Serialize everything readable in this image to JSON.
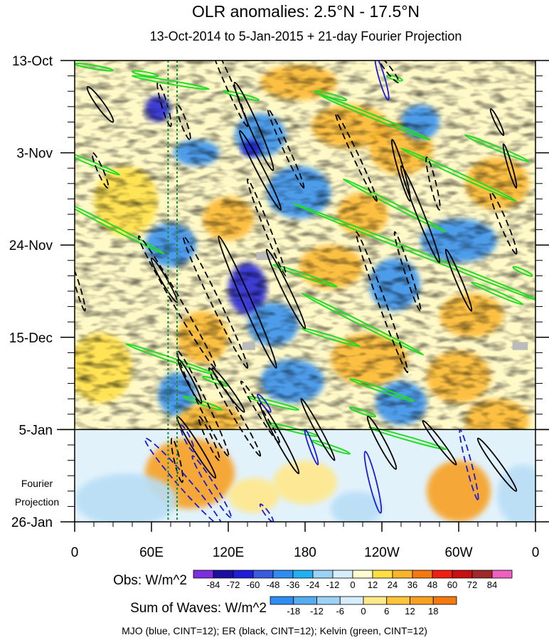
{
  "chart_data": {
    "type": "heatmap",
    "title": "OLR anomalies: 2.5°N - 17.5°N",
    "subtitle": "13-Oct-2014 to 5-Jan-2015 + 21-day Fourier Projection",
    "x_ticks": [
      {
        "lon": 0,
        "label": "0"
      },
      {
        "lon": 60,
        "label": "60E"
      },
      {
        "lon": 120,
        "label": "120E"
      },
      {
        "lon": 180,
        "label": "180"
      },
      {
        "lon": 240,
        "label": "120W"
      },
      {
        "lon": 300,
        "label": "60W"
      },
      {
        "lon": 360,
        "label": "0"
      }
    ],
    "y_ticks": [
      {
        "day": 0,
        "label": "13-Oct"
      },
      {
        "day": 21,
        "label": "3-Nov"
      },
      {
        "day": 42,
        "label": "24-Nov"
      },
      {
        "day": 63,
        "label": "15-Dec"
      },
      {
        "day": 84,
        "label": "5-Jan"
      },
      {
        "day": 105,
        "label": "26-Jan"
      }
    ],
    "forecast_label": [
      "Fourier",
      "Projection"
    ],
    "forecast_start_day": 84,
    "green_dotted_lons": [
      73,
      80
    ],
    "obs_colorbar": {
      "label": "Obs: W/m^2",
      "ticks": [
        "-84",
        "-72",
        "-60",
        "-48",
        "-36",
        "-24",
        "-12",
        "0",
        "12",
        "24",
        "36",
        "48",
        "60",
        "72",
        "84"
      ],
      "colors": [
        "#7d2ee0",
        "#1c0ea0",
        "#1e1ed8",
        "#3a5ae0",
        "#2f8cf0",
        "#21b0f2",
        "#9bd2f5",
        "#d6eefc",
        "#fffcd0",
        "#ffe040",
        "#fbb52a",
        "#f27a10",
        "#ee2012",
        "#c81010",
        "#a02828",
        "#f060c0"
      ]
    },
    "waves_colorbar": {
      "label": "Sum of Waves: W/m^2",
      "ticks": [
        "-18",
        "-12",
        "-6",
        "0",
        "6",
        "12",
        "18"
      ],
      "colors": [
        "#2f8cf0",
        "#56acf0",
        "#9bd2f5",
        "#d6eefc",
        "#ffe88a",
        "#ffc43a",
        "#f8a020",
        "#f27a10"
      ]
    },
    "footer": "MJO (blue, CINT=12); ER (black, CINT=12); Kelvin (green, CINT=12)",
    "colors": {
      "mjo": "#1a1ad8",
      "er": "#000000",
      "kelvin": "#22dd22",
      "dotted": "#1e8a3c",
      "missing": "#bbbbbb"
    },
    "er_contours": [
      {
        "lon": 20,
        "day": 10,
        "len_lon": 20,
        "len_day": 8,
        "w": 5,
        "dashed": false
      },
      {
        "lon": 20,
        "day": 25,
        "len_lon": 12,
        "len_day": 8,
        "w": 4,
        "dashed": true
      },
      {
        "lon": 70,
        "day": 10,
        "len_lon": 10,
        "len_day": 10,
        "w": 4,
        "dashed": true
      },
      {
        "lon": 85,
        "day": 14,
        "len_lon": 10,
        "len_day": 8,
        "w": 4,
        "dashed": true
      },
      {
        "lon": 120,
        "day": 5,
        "len_lon": 30,
        "len_day": 20,
        "w": 5,
        "dashed": true
      },
      {
        "lon": 140,
        "day": 15,
        "len_lon": 30,
        "len_day": 20,
        "w": 6,
        "dashed": false
      },
      {
        "lon": 145,
        "day": 25,
        "len_lon": 32,
        "len_day": 18,
        "w": 5,
        "dashed": false
      },
      {
        "lon": 165,
        "day": 20,
        "len_lon": 28,
        "len_day": 18,
        "w": 4,
        "dashed": true
      },
      {
        "lon": 150,
        "day": 38,
        "len_lon": 30,
        "len_day": 22,
        "w": 4,
        "dashed": true
      },
      {
        "lon": 220,
        "day": 22,
        "len_lon": 32,
        "len_day": 20,
        "w": 4,
        "dashed": true
      },
      {
        "lon": 245,
        "day": 2,
        "len_lon": 16,
        "len_day": 6,
        "w": 4,
        "dashed": true
      },
      {
        "lon": 270,
        "day": 35,
        "len_lon": 30,
        "len_day": 22,
        "w": 5,
        "dashed": false
      },
      {
        "lon": 255,
        "day": 25,
        "len_lon": 14,
        "len_day": 14,
        "w": 4,
        "dashed": false
      },
      {
        "lon": 280,
        "day": 28,
        "len_lon": 10,
        "len_day": 12,
        "w": 4,
        "dashed": true
      },
      {
        "lon": 335,
        "day": 37,
        "len_lon": 20,
        "len_day": 14,
        "w": 5,
        "dashed": true
      },
      {
        "lon": 330,
        "day": 14,
        "len_lon": 10,
        "len_day": 6,
        "w": 3,
        "dashed": false
      },
      {
        "lon": 340,
        "day": 24,
        "len_lon": 10,
        "len_day": 10,
        "w": 3,
        "dashed": false
      },
      {
        "lon": 3,
        "day": 52,
        "len_lon": 10,
        "len_day": 10,
        "w": 3,
        "dashed": true
      },
      {
        "lon": 80,
        "day": 55,
        "len_lon": 60,
        "len_day": 30,
        "w": 6,
        "dashed": true
      },
      {
        "lon": 70,
        "day": 50,
        "len_lon": 20,
        "len_day": 10,
        "w": 4,
        "dashed": false
      },
      {
        "lon": 110,
        "day": 55,
        "len_lon": 50,
        "len_day": 30,
        "w": 6,
        "dashed": true
      },
      {
        "lon": 135,
        "day": 55,
        "len_lon": 45,
        "len_day": 30,
        "w": 6,
        "dashed": false
      },
      {
        "lon": 165,
        "day": 52,
        "len_lon": 30,
        "len_day": 18,
        "w": 5,
        "dashed": false
      },
      {
        "lon": 240,
        "day": 55,
        "len_lon": 40,
        "len_day": 32,
        "w": 5,
        "dashed": true
      },
      {
        "lon": 260,
        "day": 48,
        "len_lon": 20,
        "len_day": 18,
        "w": 4,
        "dashed": true
      },
      {
        "lon": 300,
        "day": 50,
        "len_lon": 20,
        "len_day": 14,
        "w": 4,
        "dashed": false
      },
      {
        "lon": 100,
        "day": 78,
        "len_lon": 40,
        "len_day": 24,
        "w": 6,
        "dashed": true
      },
      {
        "lon": 125,
        "day": 80,
        "len_lon": 40,
        "len_day": 20,
        "w": 5,
        "dashed": true
      },
      {
        "lon": 90,
        "day": 73,
        "len_lon": 18,
        "len_day": 10,
        "w": 4,
        "dashed": false
      },
      {
        "lon": 120,
        "day": 75,
        "len_lon": 25,
        "len_day": 10,
        "w": 4,
        "dashed": false
      },
      {
        "lon": 145,
        "day": 80,
        "len_lon": 30,
        "len_day": 14,
        "w": 4,
        "dashed": true
      },
      {
        "lon": 160,
        "day": 86,
        "len_lon": 30,
        "len_day": 16,
        "w": 5,
        "dashed": false
      },
      {
        "lon": 190,
        "day": 84,
        "len_lon": 26,
        "len_day": 14,
        "w": 4,
        "dashed": false
      },
      {
        "lon": 240,
        "day": 87,
        "len_lon": 22,
        "len_day": 12,
        "w": 5,
        "dashed": false
      },
      {
        "lon": 285,
        "day": 87,
        "len_lon": 26,
        "len_day": 10,
        "w": 4,
        "dashed": false
      },
      {
        "lon": 330,
        "day": 92,
        "len_lon": 30,
        "len_day": 12,
        "w": 5,
        "dashed": false
      },
      {
        "lon": 95,
        "day": 88,
        "len_lon": 30,
        "len_day": 14,
        "w": 5,
        "dashed": false
      },
      {
        "lon": 80,
        "day": 91,
        "len_lon": 8,
        "len_day": 10,
        "w": 4,
        "dashed": true
      },
      {
        "lon": 105,
        "day": 86,
        "len_lon": 16,
        "len_day": 10,
        "w": 4,
        "dashed": true
      }
    ],
    "mjo_contours": [
      {
        "lon": 240,
        "day": 4,
        "len_lon": 10,
        "len_day": 10,
        "w": 4,
        "dashed": false
      },
      {
        "lon": 148,
        "day": 78,
        "len_lon": 10,
        "len_day": 4,
        "w": 3,
        "dashed": false
      },
      {
        "lon": 185,
        "day": 88,
        "len_lon": 10,
        "len_day": 8,
        "w": 3,
        "dashed": false
      },
      {
        "lon": 233,
        "day": 96,
        "len_lon": 12,
        "len_day": 14,
        "w": 5,
        "dashed": false
      },
      {
        "lon": 85,
        "day": 96,
        "len_lon": 60,
        "len_day": 20,
        "w": 8,
        "dashed": true
      },
      {
        "lon": 107,
        "day": 97,
        "len_lon": 30,
        "len_day": 14,
        "w": 5,
        "dashed": true
      },
      {
        "lon": 88,
        "day": 86,
        "len_lon": 10,
        "len_day": 6,
        "w": 4,
        "dashed": true
      },
      {
        "lon": 150,
        "day": 103,
        "len_lon": 10,
        "len_day": 4,
        "w": 3,
        "dashed": true
      },
      {
        "lon": 308,
        "day": 92,
        "len_lon": 14,
        "len_day": 16,
        "w": 4,
        "dashed": true
      }
    ],
    "kelvin_lines": [
      {
        "lon": 15,
        "day": 1.5,
        "len_lon": 30,
        "len_day": 1.5
      },
      {
        "lon": 55,
        "day": 3,
        "len_lon": 20,
        "len_day": 1
      },
      {
        "lon": 75,
        "day": 5,
        "len_lon": 60,
        "len_day": 3
      },
      {
        "lon": 130,
        "day": 8,
        "len_lon": 28,
        "len_day": 2
      },
      {
        "lon": 200,
        "day": 8,
        "len_lon": 25,
        "len_day": 2
      },
      {
        "lon": 250,
        "day": 4,
        "len_lon": 12,
        "len_day": 1
      },
      {
        "lon": 235,
        "day": 13,
        "len_lon": 85,
        "len_day": 10
      },
      {
        "lon": 330,
        "day": 20,
        "len_lon": 50,
        "len_day": 6
      },
      {
        "lon": 10,
        "day": 23,
        "len_lon": 50,
        "len_day": 6
      },
      {
        "lon": 300,
        "day": 26,
        "len_lon": 90,
        "len_day": 12
      },
      {
        "lon": 250,
        "day": 33,
        "len_lon": 80,
        "len_day": 12
      },
      {
        "lon": 30,
        "day": 38,
        "len_lon": 80,
        "len_day": 12
      },
      {
        "lon": 270,
        "day": 44,
        "len_lon": 200,
        "len_day": 23
      },
      {
        "lon": 180,
        "day": 49,
        "len_lon": 50,
        "len_day": 5
      },
      {
        "lon": 330,
        "day": 53,
        "len_lon": 40,
        "len_day": 5
      },
      {
        "lon": 225,
        "day": 60,
        "len_lon": 95,
        "len_day": 14
      },
      {
        "lon": 350,
        "day": 48,
        "len_lon": 15,
        "len_day": 2
      },
      {
        "lon": 200,
        "day": 63,
        "len_lon": 45,
        "len_day": 4
      },
      {
        "lon": 75,
        "day": 68,
        "len_lon": 70,
        "len_day": 7
      },
      {
        "lon": 110,
        "day": 73,
        "len_lon": 20,
        "len_day": 2
      },
      {
        "lon": 240,
        "day": 75,
        "len_lon": 50,
        "len_day": 5
      },
      {
        "lon": 100,
        "day": 78,
        "len_lon": 30,
        "len_day": 3
      },
      {
        "lon": 155,
        "day": 78,
        "len_lon": 40,
        "len_day": 3
      },
      {
        "lon": 225,
        "day": 80,
        "len_lon": 20,
        "len_day": 2
      },
      {
        "lon": 170,
        "day": 84,
        "len_lon": 40,
        "len_day": 3
      },
      {
        "lon": 260,
        "day": 86,
        "len_lon": 60,
        "len_day": 5
      },
      {
        "lon": 200,
        "day": 88,
        "len_lon": 30,
        "len_day": 3
      }
    ],
    "anom_blobs": [
      {
        "lon": 65,
        "day": 11,
        "r_lon": 10,
        "r_day": 3,
        "v": -3
      },
      {
        "lon": 95,
        "day": 21,
        "r_lon": 18,
        "r_day": 3,
        "v": -2
      },
      {
        "lon": 145,
        "day": 17,
        "r_lon": 20,
        "r_day": 5,
        "v": -2
      },
      {
        "lon": 138,
        "day": 20,
        "r_lon": 8,
        "r_day": 2,
        "v": -3
      },
      {
        "lon": 215,
        "day": 15,
        "r_lon": 30,
        "r_day": 5,
        "v": 2
      },
      {
        "lon": 175,
        "day": 5,
        "r_lon": 30,
        "r_day": 4,
        "v": 2
      },
      {
        "lon": 255,
        "day": 20,
        "r_lon": 25,
        "r_day": 6,
        "v": 2
      },
      {
        "lon": 270,
        "day": 14,
        "r_lon": 15,
        "r_day": 4,
        "v": -2
      },
      {
        "lon": 330,
        "day": 28,
        "r_lon": 25,
        "r_day": 6,
        "v": 2
      },
      {
        "lon": 300,
        "day": 41,
        "r_lon": 30,
        "r_day": 5,
        "v": -2
      },
      {
        "lon": 225,
        "day": 35,
        "r_lon": 20,
        "r_day": 5,
        "v": 2
      },
      {
        "lon": 175,
        "day": 30,
        "r_lon": 25,
        "r_day": 6,
        "v": -2
      },
      {
        "lon": 120,
        "day": 36,
        "r_lon": 20,
        "r_day": 5,
        "v": 2
      },
      {
        "lon": 75,
        "day": 42,
        "r_lon": 20,
        "r_day": 5,
        "v": -2
      },
      {
        "lon": 135,
        "day": 52,
        "r_lon": 15,
        "r_day": 6,
        "v": -3
      },
      {
        "lon": 200,
        "day": 47,
        "r_lon": 25,
        "r_day": 5,
        "v": 2
      },
      {
        "lon": 250,
        "day": 51,
        "r_lon": 20,
        "r_day": 6,
        "v": -2
      },
      {
        "lon": 310,
        "day": 58,
        "r_lon": 25,
        "r_day": 5,
        "v": 2
      },
      {
        "lon": 155,
        "day": 60,
        "r_lon": 20,
        "r_day": 5,
        "v": -2
      },
      {
        "lon": 100,
        "day": 63,
        "r_lon": 20,
        "r_day": 6,
        "v": 2
      },
      {
        "lon": 230,
        "day": 68,
        "r_lon": 30,
        "r_day": 6,
        "v": 2
      },
      {
        "lon": 300,
        "day": 72,
        "r_lon": 25,
        "r_day": 6,
        "v": 2
      },
      {
        "lon": 170,
        "day": 73,
        "r_lon": 25,
        "r_day": 5,
        "v": -2
      },
      {
        "lon": 80,
        "day": 76,
        "r_lon": 15,
        "r_day": 5,
        "v": -2
      },
      {
        "lon": 105,
        "day": 82,
        "r_lon": 25,
        "r_day": 4,
        "v": 2
      },
      {
        "lon": 330,
        "day": 82,
        "r_lon": 25,
        "r_day": 5,
        "v": 2
      },
      {
        "lon": 40,
        "day": 32,
        "r_lon": 25,
        "r_day": 8,
        "v": 1
      },
      {
        "lon": 20,
        "day": 70,
        "r_lon": 25,
        "r_day": 8,
        "v": 1
      },
      {
        "lon": 255,
        "day": 78,
        "r_lon": 20,
        "r_day": 5,
        "v": -2
      }
    ],
    "fcst_blobs": [
      {
        "lon": 90,
        "day": 94,
        "r_lon": 35,
        "r_day": 8,
        "v": 2
      },
      {
        "lon": 300,
        "day": 98,
        "r_lon": 25,
        "r_day": 7,
        "v": 2
      },
      {
        "lon": 180,
        "day": 96,
        "r_lon": 25,
        "r_day": 5,
        "v": 1
      },
      {
        "lon": 220,
        "day": 102,
        "r_lon": 20,
        "r_day": 4,
        "v": -1
      },
      {
        "lon": 40,
        "day": 100,
        "r_lon": 40,
        "r_day": 6,
        "v": -1
      },
      {
        "lon": 350,
        "day": 99,
        "r_lon": 20,
        "r_day": 7,
        "v": -1
      },
      {
        "lon": 140,
        "day": 99,
        "r_lon": 20,
        "r_day": 4,
        "v": 1
      }
    ],
    "missing_patches": [
      {
        "lon": 148,
        "day": 44.5,
        "w_lon": 12,
        "h_day": 1.8
      },
      {
        "lon": 136,
        "day": 65,
        "w_lon": 10,
        "h_day": 1.8
      },
      {
        "lon": 348,
        "day": 65,
        "w_lon": 12,
        "h_day": 1.8
      }
    ]
  }
}
